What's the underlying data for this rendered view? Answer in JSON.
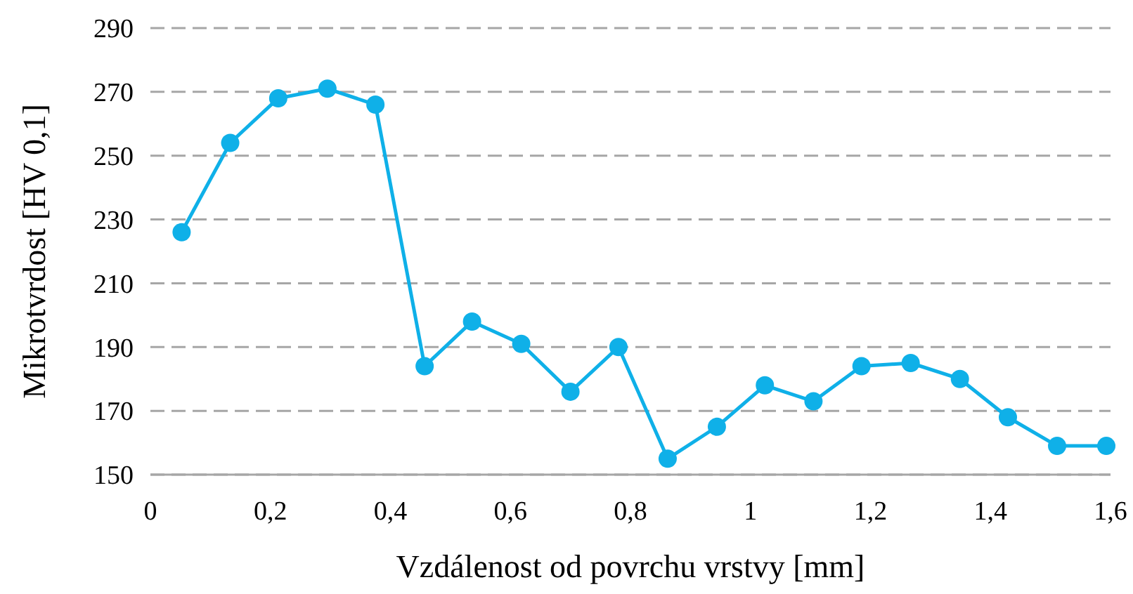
{
  "chart_data": {
    "type": "line",
    "xlabel": "Vzdálenost od povrchu vrstvy [mm]",
    "ylabel": "Mikrotvrdost [HV 0,1]",
    "x": [
      0.052,
      0.133,
      0.213,
      0.295,
      0.375,
      0.457,
      0.536,
      0.618,
      0.7,
      0.78,
      0.862,
      0.944,
      1.024,
      1.105,
      1.185,
      1.267,
      1.349,
      1.429,
      1.511,
      1.593
    ],
    "series": [
      {
        "color": "#0fb0e8",
        "values": [
          226,
          254,
          268,
          271,
          266,
          184,
          198,
          191,
          176,
          190,
          155,
          165,
          178,
          173,
          184,
          185,
          180,
          168,
          159,
          159
        ]
      }
    ],
    "xlim": [
      0,
      1.6
    ],
    "ylim": [
      150,
      290
    ],
    "xticks": [
      0,
      {
        "value": 0.2,
        "label": "0,2"
      },
      {
        "value": 0.4,
        "label": "0,4"
      },
      {
        "value": 0.6,
        "label": "0,6"
      },
      {
        "value": 0.8,
        "label": "0,8"
      },
      1,
      {
        "value": 1.2,
        "label": "1,2"
      },
      {
        "value": 1.4,
        "label": "1,4"
      },
      {
        "value": 1.6,
        "label": "1,6"
      }
    ],
    "yticks": [
      150,
      170,
      190,
      210,
      230,
      250,
      270,
      290
    ],
    "grid": "y",
    "marker": "circle",
    "line_style": "solid"
  }
}
